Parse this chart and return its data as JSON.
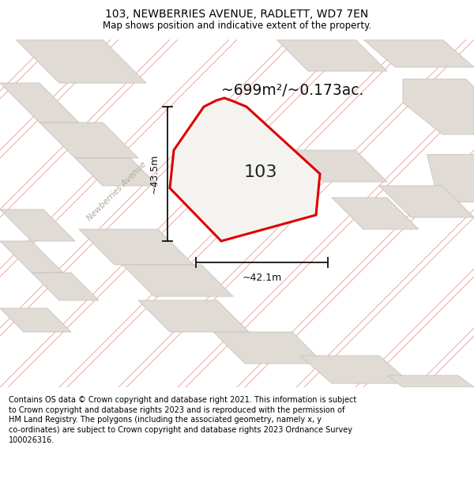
{
  "title_line1": "103, NEWBERRIES AVENUE, RADLETT, WD7 7EN",
  "title_line2": "Map shows position and indicative extent of the property.",
  "area_label": "~699m²/~0.173ac.",
  "property_number": "103",
  "dim_vertical": "~43.5m",
  "dim_horizontal": "~42.1m",
  "street_label": "Newberries Avenue",
  "footer_text": "Contains OS data © Crown copyright and database right 2021. This information is subject to Crown copyright and database rights 2023 and is reproduced with the permission of HM Land Registry. The polygons (including the associated geometry, namely x, y co-ordinates) are subject to Crown copyright and database rights 2023 Ordnance Survey 100026316.",
  "bg_color": "#f5f3f0",
  "map_bg_color": "#f5f3f0",
  "block_fill": "#e0dbd5",
  "block_edge": "#c8c2bb",
  "road_line_color": "#f2b8b8",
  "property_outline_color": "#dd0000",
  "property_fill": "#f5f3f0",
  "footer_bg": "#ffffff",
  "title_bg": "#ffffff",
  "dim_color": "#111111",
  "street_label_color": "#b0a898",
  "area_label_color": "#111111",
  "number_color": "#222222"
}
